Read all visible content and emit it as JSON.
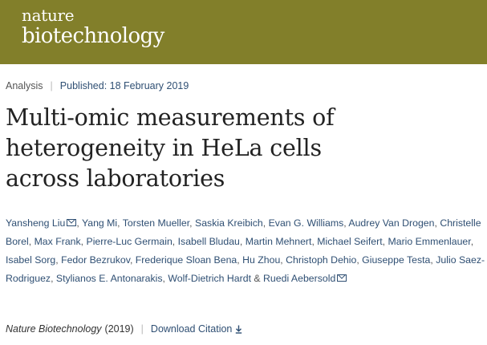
{
  "journal": {
    "logo_line1": "nature",
    "logo_line2": "biotechnology",
    "brand_color": "#827f2a"
  },
  "article": {
    "type": "Analysis",
    "published": "Published: 18 February 2019",
    "title": "Multi-omic measurements of heterogeneity in HeLa cells across laboratories",
    "authors": [
      {
        "name": "Yansheng Liu",
        "mail": true,
        "sep": ", "
      },
      {
        "name": "Yang Mi",
        "mail": false,
        "sep": ", "
      },
      {
        "name": "Torsten Mueller",
        "mail": false,
        "sep": ", "
      },
      {
        "name": "Saskia Kreibich",
        "mail": false,
        "sep": ", "
      },
      {
        "name": "Evan G. Williams",
        "mail": false,
        "sep": ", "
      },
      {
        "name": "Audrey Van Drogen",
        "mail": false,
        "sep": ", "
      },
      {
        "name": "Christelle Borel",
        "mail": false,
        "sep": ", "
      },
      {
        "name": "Max Frank",
        "mail": false,
        "sep": ", "
      },
      {
        "name": "Pierre-Luc Germain",
        "mail": false,
        "sep": ", "
      },
      {
        "name": "Isabell Bludau",
        "mail": false,
        "sep": ", "
      },
      {
        "name": "Martin Mehnert",
        "mail": false,
        "sep": ", "
      },
      {
        "name": "Michael Seifert",
        "mail": false,
        "sep": ", "
      },
      {
        "name": "Mario Emmenlauer",
        "mail": false,
        "sep": ", "
      },
      {
        "name": "Isabel Sorg",
        "mail": false,
        "sep": ", "
      },
      {
        "name": "Fedor Bezrukov",
        "mail": false,
        "sep": ", "
      },
      {
        "name": "Frederique Sloan Bena",
        "mail": false,
        "sep": ", "
      },
      {
        "name": "Hu Zhou",
        "mail": false,
        "sep": ", "
      },
      {
        "name": "Christoph Dehio",
        "mail": false,
        "sep": ", "
      },
      {
        "name": "Giuseppe Testa",
        "mail": false,
        "sep": ", "
      },
      {
        "name": "Julio Saez-Rodriguez",
        "mail": false,
        "sep": ", "
      },
      {
        "name": "Stylianos E. Antonarakis",
        "mail": false,
        "sep": ", "
      },
      {
        "name": "Wolf-Dietrich Hardt",
        "mail": false,
        "sep": " & "
      },
      {
        "name": "Ruedi Aebersold",
        "mail": true,
        "sep": ""
      }
    ],
    "citation_journal": "Nature Biotechnology",
    "citation_year": "(2019)",
    "download_label": "Download Citation"
  }
}
